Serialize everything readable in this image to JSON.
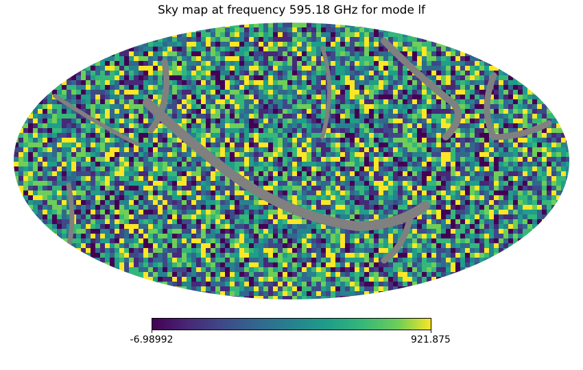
{
  "chart_data": {
    "type": "heatmap",
    "projection": "mollweide",
    "title": "Sky map at frequency 595.18 GHz for mode lf",
    "colormap": "viridis",
    "colorbar": {
      "min": -6.98992,
      "max": 921.875,
      "orientation": "horizontal",
      "tick_labels": [
        "-6.98992",
        "921.875"
      ]
    },
    "bad_value_color": "#808080"
  }
}
